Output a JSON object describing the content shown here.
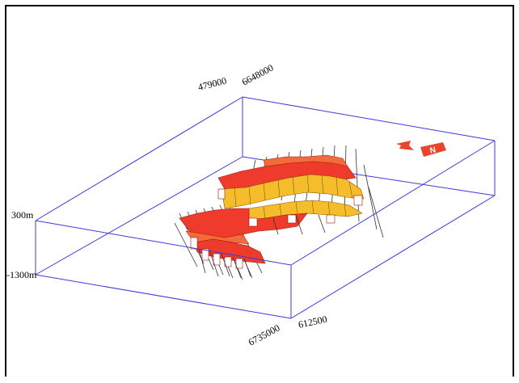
{
  "labels": {
    "corner_x_far": "479000",
    "corner_y_far": "6648000",
    "corner_x_near": "612500",
    "corner_y_near": "6735000",
    "depth_top": "300m",
    "depth_bottom": "-1300m",
    "north_symbol": "N"
  },
  "colors": {
    "box_edge": "#3b3bdc",
    "surface_red": "#ee3b2b",
    "surface_orange": "#f26c3a",
    "surface_yellow": "#f5bd2c",
    "north_arrow": "#e8452f",
    "fault_line": "#333333"
  }
}
